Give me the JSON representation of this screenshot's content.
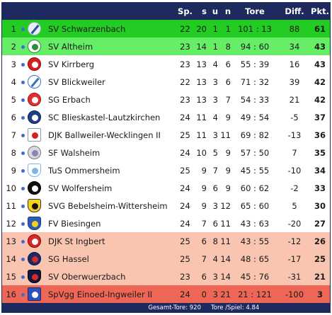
{
  "header": {
    "sp": "Sp.",
    "s": "s",
    "u": "u",
    "n": "n",
    "tore": "Tore",
    "diff": "Diff.",
    "pkt": "Pkt."
  },
  "colors": {
    "header_bg": "#1e2a5e",
    "leader": "#22cc22",
    "promotion": "#66ee66",
    "relegation": "#f9c5b0",
    "last": "#ee6655",
    "normal": "#ffffff",
    "dot": "#3f6cd0"
  },
  "rows": [
    {
      "rank": "1",
      "logo": "slash-crest-icon",
      "team": "SV Schwarzenbach",
      "sp": "22",
      "s": "20",
      "u": "1",
      "n": "1",
      "tore": "101 : 13",
      "diff": "88",
      "pkt": "61",
      "zone": "leader"
    },
    {
      "rank": "2",
      "logo": "green-ring-crest-icon",
      "team": "SV Altheim",
      "sp": "23",
      "s": "14",
      "u": "1",
      "n": "8",
      "tore": "94 : 60",
      "diff": "34",
      "pkt": "43",
      "zone": "promotion"
    },
    {
      "rank": "3",
      "logo": "red-white-crest-icon",
      "team": "SV Kirrberg",
      "sp": "23",
      "s": "13",
      "u": "4",
      "n": "6",
      "tore": "55 : 39",
      "diff": "16",
      "pkt": "43",
      "zone": "normal"
    },
    {
      "rank": "4",
      "logo": "blue-stripe-crest-icon",
      "team": "SV Blickweiler",
      "sp": "22",
      "s": "13",
      "u": "3",
      "n": "6",
      "tore": "71 : 32",
      "diff": "39",
      "pkt": "42",
      "zone": "normal"
    },
    {
      "rank": "5",
      "logo": "red-gear-crest-icon",
      "team": "SG Erbach",
      "sp": "23",
      "s": "13",
      "u": "3",
      "n": "7",
      "tore": "54 : 33",
      "diff": "21",
      "pkt": "42",
      "zone": "normal"
    },
    {
      "rank": "6",
      "logo": "navy-circle-crest-icon",
      "team": "SC Blieskastel-Lautzkirchen",
      "sp": "24",
      "s": "11",
      "u": "4",
      "n": "9",
      "tore": "49 : 54",
      "diff": "-5",
      "pkt": "37",
      "zone": "normal"
    },
    {
      "rank": "7",
      "logo": "red-flag-crest-icon",
      "team": "DJK Ballweiler-Wecklingen II",
      "sp": "25",
      "s": "11",
      "u": "3",
      "n": "11",
      "tore": "69 : 82",
      "diff": "-13",
      "pkt": "36",
      "zone": "normal"
    },
    {
      "rank": "8",
      "logo": "grey-lattice-crest-icon",
      "team": "SF Walsheim",
      "sp": "24",
      "s": "10",
      "u": "5",
      "n": "9",
      "tore": "57 : 50",
      "diff": "7",
      "pkt": "35",
      "zone": "normal"
    },
    {
      "rank": "9",
      "logo": "lightblue-v-crest-icon",
      "team": "TuS Ommersheim",
      "sp": "25",
      "s": "9",
      "u": "7",
      "n": "9",
      "tore": "45 : 55",
      "diff": "-10",
      "pkt": "34",
      "zone": "normal"
    },
    {
      "rank": "10",
      "logo": "black-white-crest-icon",
      "team": "SV Wolfersheim",
      "sp": "24",
      "s": "9",
      "u": "6",
      "n": "9",
      "tore": "60 : 62",
      "diff": "-2",
      "pkt": "33",
      "zone": "normal"
    },
    {
      "rank": "11",
      "logo": "yellow-black-crest-icon",
      "team": "SVG Bebelsheim-Wittersheim",
      "sp": "24",
      "s": "9",
      "u": "3",
      "n": "12",
      "tore": "65 : 60",
      "diff": "5",
      "pkt": "30",
      "zone": "normal"
    },
    {
      "rank": "12",
      "logo": "blue-yellow-crest-icon",
      "team": "FV Biesingen",
      "sp": "24",
      "s": "7",
      "u": "6",
      "n": "11",
      "tore": "43 : 63",
      "diff": "-20",
      "pkt": "27",
      "zone": "normal"
    },
    {
      "rank": "13",
      "logo": "red-bird-crest-icon",
      "team": "DJK St Ingbert",
      "sp": "25",
      "s": "6",
      "u": "8",
      "n": "11",
      "tore": "43 : 55",
      "diff": "-12",
      "pkt": "26",
      "zone": "relegation"
    },
    {
      "rank": "14",
      "logo": "navy-red-crest-icon",
      "team": "SG Hassel",
      "sp": "25",
      "s": "7",
      "u": "4",
      "n": "14",
      "tore": "48 : 65",
      "diff": "-17",
      "pkt": "25",
      "zone": "relegation"
    },
    {
      "rank": "15",
      "logo": "dark-shield-crest-icon",
      "team": "SV Oberwuerzbach",
      "sp": "23",
      "s": "6",
      "u": "3",
      "n": "14",
      "tore": "45 : 76",
      "diff": "-31",
      "pkt": "21",
      "zone": "relegation"
    },
    {
      "rank": "16",
      "logo": "blue-square-crest-icon",
      "team": "SpVgg Einoed-Ingweiler II",
      "sp": "24",
      "s": "0",
      "u": "3",
      "n": "21",
      "tore": "21 : 121",
      "diff": "-100",
      "pkt": "3",
      "zone": "last"
    }
  ],
  "footer": {
    "gesamt": "Gesamt-Tore: 920",
    "pro_spiel": "Tore /Spiel: 4.84"
  }
}
